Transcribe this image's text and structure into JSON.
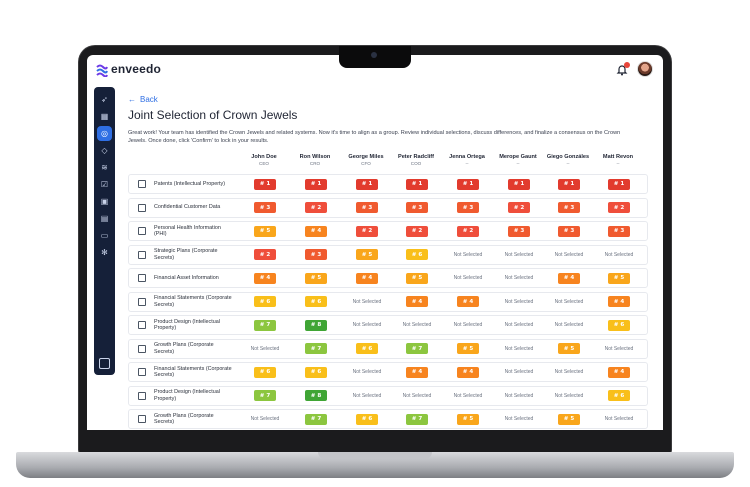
{
  "app": {
    "name": "enveedo"
  },
  "page": {
    "back_label": "Back",
    "title": "Joint Selection of Crown Jewels",
    "intro": "Great work! Your team has identified the Crown Jewels and related systems. Now it's time to align as a group. Review individual selections, discuss differences, and finalize a consensus on the Crown Jewels. Once done, click 'Confirm' to lock in your results."
  },
  "colors": {
    "rank1": "#e23b2e",
    "rank2": "#ef4e3b",
    "rank3": "#f05a2f",
    "rank4": "#f7841f",
    "rank5": "#f9a61b",
    "rank6": "#f9bf1a",
    "rank7": "#8cc63f",
    "rank8": "#3fa535",
    "sidebar": "#152039",
    "accent": "#2f6fe4"
  },
  "columns": [
    {
      "name": "John Doe",
      "role": "CEO"
    },
    {
      "name": "Ron Wilson",
      "role": "CRO"
    },
    {
      "name": "George Miles",
      "role": "CFO"
    },
    {
      "name": "Peter Radcliff",
      "role": "COO"
    },
    {
      "name": "Jenna Ortega",
      "role": "--"
    },
    {
      "name": "Merope Gaunt",
      "role": "--"
    },
    {
      "name": "Giego Gonzáles",
      "role": "--"
    },
    {
      "name": "Matt Revon",
      "role": "--"
    }
  ],
  "not_selected_label": "Not Selected",
  "rows": [
    {
      "label": "Patents (Intellectual Property)",
      "ranks": [
        1,
        1,
        1,
        1,
        1,
        1,
        1,
        1
      ]
    },
    {
      "label": "Confidential Customer Data",
      "ranks": [
        3,
        2,
        3,
        3,
        3,
        2,
        3,
        2
      ]
    },
    {
      "label": "Personal Health Information (PHI)",
      "ranks": [
        5,
        4,
        2,
        2,
        2,
        3,
        3,
        3
      ]
    },
    {
      "label": "Strategic Plans (Corporate Secrets)",
      "ranks": [
        2,
        3,
        5,
        6,
        0,
        0,
        0,
        0
      ]
    },
    {
      "label": "Financial Asset Information",
      "ranks": [
        4,
        5,
        4,
        5,
        0,
        0,
        4,
        5
      ]
    },
    {
      "label": "Financial Statements (Corporate Secrets)",
      "ranks": [
        6,
        6,
        0,
        4,
        4,
        0,
        0,
        4
      ]
    },
    {
      "label": "Product Design (Intellectual Property)",
      "ranks": [
        7,
        8,
        0,
        0,
        0,
        0,
        0,
        6
      ]
    },
    {
      "label": "Growth Plans (Corporate Secrets)",
      "ranks": [
        0,
        7,
        6,
        7,
        5,
        0,
        5,
        0
      ]
    },
    {
      "label": "Financial Statements (Corporate Secrets)",
      "ranks": [
        6,
        6,
        0,
        4,
        4,
        0,
        0,
        4
      ]
    },
    {
      "label": "Product Design (Intellectual Property)",
      "ranks": [
        7,
        8,
        0,
        0,
        0,
        0,
        0,
        6
      ]
    },
    {
      "label": "Growth Plans (Corporate Secrets)",
      "ranks": [
        0,
        7,
        6,
        7,
        5,
        0,
        5,
        0
      ]
    }
  ],
  "sidebar_icons": [
    "rocket-icon",
    "grid-icon",
    "target-icon",
    "diamond-icon",
    "layers-icon",
    "check-square-icon",
    "briefcase-icon",
    "report-icon",
    "calendar-icon",
    "settings-icon"
  ],
  "sidebar_bottom_icon": "collapse-icon"
}
